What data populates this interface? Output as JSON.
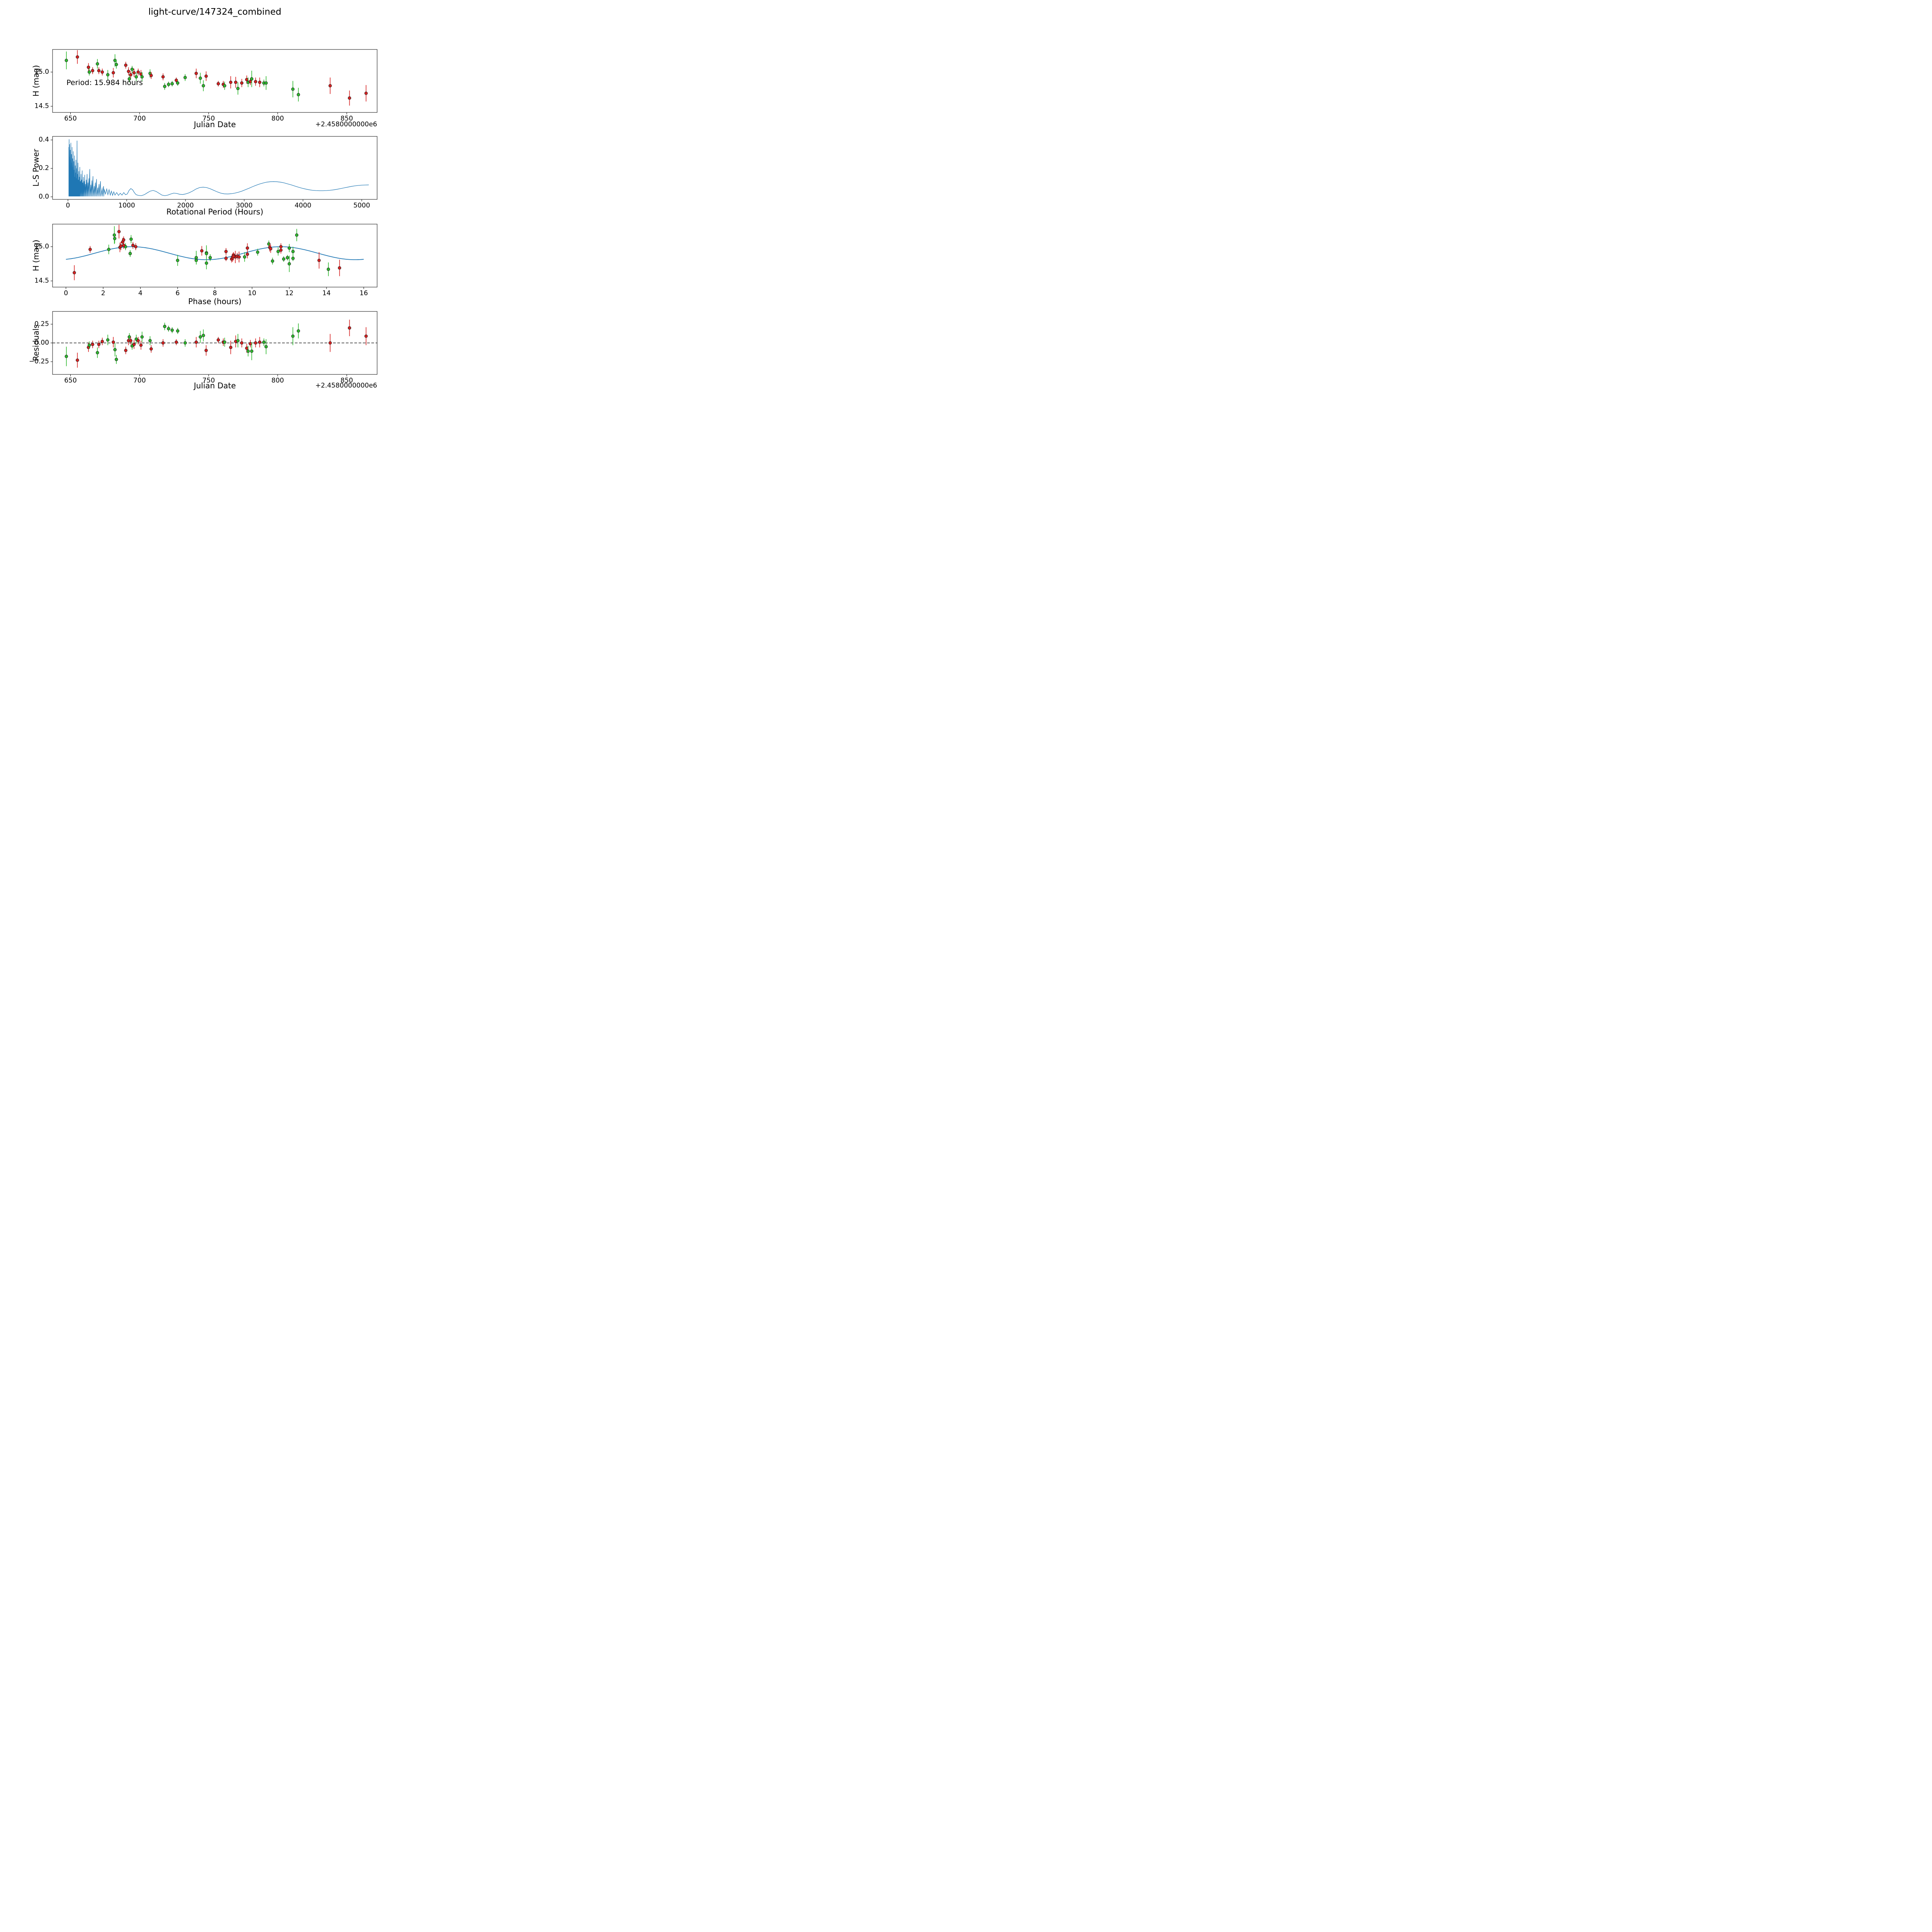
{
  "title": "light-curve/147324_combined",
  "colors": {
    "red": "#d62020",
    "green": "#2db82d",
    "blue": "#1f77b4",
    "marker_edge": "#1a1a1a",
    "axis": "#000000"
  },
  "chart_data": [
    {
      "type": "scatter",
      "name": "light-curve-vs-jd",
      "xlabel": "Julian Date",
      "ylabel": "H (mag)",
      "x_offset_label": "+2.4580000000e6",
      "annotation": "Period: 15.984 hours",
      "xlim": [
        637,
        872
      ],
      "ylim_bottom_top": [
        14.41,
        15.33
      ],
      "xticks": {
        "values": [
          650,
          700,
          750,
          800,
          850
        ],
        "labels": [
          "650",
          "700",
          "750",
          "800",
          "850"
        ]
      },
      "yticks": {
        "values": [
          15.0,
          14.5
        ],
        "labels": [
          "15.0",
          "14.5"
        ]
      },
      "x_field": "jd",
      "y_field": "mag",
      "errorbars": true
    },
    {
      "type": "line",
      "name": "lomb-scargle-periodogram",
      "xlabel": "Rotational Period (Hours)",
      "ylabel": "L-S Power",
      "xlim": [
        -262,
        5262
      ],
      "ylim_bottom_top": [
        -0.018,
        0.425
      ],
      "xticks": {
        "values": [
          0,
          1000,
          2000,
          3000,
          4000,
          5000
        ],
        "labels": [
          "0",
          "1000",
          "2000",
          "3000",
          "4000",
          "5000"
        ]
      },
      "yticks": {
        "values": [
          0.0,
          0.2,
          0.4
        ],
        "labels": [
          "0.0",
          "0.2",
          "0.4"
        ]
      },
      "spikes": [
        [
          15,
          0.35
        ],
        [
          20,
          0.405
        ],
        [
          25,
          0.28
        ],
        [
          30,
          0.37
        ],
        [
          35,
          0.22
        ],
        [
          40,
          0.33
        ],
        [
          45,
          0.26
        ],
        [
          50,
          0.38
        ],
        [
          55,
          0.19
        ],
        [
          60,
          0.3
        ],
        [
          65,
          0.24
        ],
        [
          70,
          0.35
        ],
        [
          75,
          0.17
        ],
        [
          80,
          0.27
        ],
        [
          85,
          0.21
        ],
        [
          90,
          0.32
        ],
        [
          95,
          0.15
        ],
        [
          100,
          0.25
        ],
        [
          106,
          0.19
        ],
        [
          112,
          0.29
        ],
        [
          118,
          0.14
        ],
        [
          124,
          0.22
        ],
        [
          130,
          0.17
        ],
        [
          136,
          0.26
        ],
        [
          142,
          0.13
        ],
        [
          148,
          0.2
        ],
        [
          155,
          0.395
        ],
        [
          162,
          0.16
        ],
        [
          170,
          0.24
        ],
        [
          178,
          0.12
        ],
        [
          186,
          0.18
        ],
        [
          194,
          0.14
        ],
        [
          202,
          0.21
        ],
        [
          212,
          0.11
        ],
        [
          222,
          0.16
        ],
        [
          232,
          0.12
        ],
        [
          242,
          0.185
        ],
        [
          252,
          0.1
        ],
        [
          262,
          0.14
        ],
        [
          274,
          0.11
        ],
        [
          286,
          0.155
        ],
        [
          298,
          0.09
        ],
        [
          312,
          0.12
        ],
        [
          326,
          0.16
        ],
        [
          340,
          0.1
        ],
        [
          356,
          0.13
        ],
        [
          372,
          0.195
        ],
        [
          390,
          0.085
        ],
        [
          408,
          0.115
        ],
        [
          426,
          0.145
        ],
        [
          446,
          0.075
        ],
        [
          466,
          0.1
        ],
        [
          486,
          0.125
        ],
        [
          508,
          0.065
        ],
        [
          530,
          0.09
        ],
        [
          554,
          0.11
        ],
        [
          580,
          0.055
        ],
        [
          606,
          0.075
        ]
      ],
      "smooth": [
        [
          620,
          0.05
        ],
        [
          640,
          0.02
        ],
        [
          660,
          0.055
        ],
        [
          680,
          0.015
        ],
        [
          700,
          0.05
        ],
        [
          720,
          0.012
        ],
        [
          740,
          0.04
        ],
        [
          760,
          0.01
        ],
        [
          780,
          0.035
        ],
        [
          800,
          0.012
        ],
        [
          830,
          0.03
        ],
        [
          860,
          0.01
        ],
        [
          890,
          0.025
        ],
        [
          920,
          0.012
        ],
        [
          950,
          0.03
        ],
        [
          980,
          0.015
        ],
        [
          1010,
          0.02
        ],
        [
          1040,
          0.045
        ],
        [
          1070,
          0.058
        ],
        [
          1100,
          0.05
        ],
        [
          1130,
          0.03
        ],
        [
          1160,
          0.015
        ],
        [
          1200,
          0.01
        ],
        [
          1250,
          0.008
        ],
        [
          1300,
          0.015
        ],
        [
          1350,
          0.028
        ],
        [
          1400,
          0.04
        ],
        [
          1450,
          0.045
        ],
        [
          1500,
          0.038
        ],
        [
          1550,
          0.025
        ],
        [
          1600,
          0.012
        ],
        [
          1650,
          0.008
        ],
        [
          1700,
          0.012
        ],
        [
          1750,
          0.02
        ],
        [
          1800,
          0.026
        ],
        [
          1850,
          0.024
        ],
        [
          1900,
          0.018
        ],
        [
          1950,
          0.016
        ],
        [
          2000,
          0.02
        ],
        [
          2060,
          0.028
        ],
        [
          2120,
          0.04
        ],
        [
          2180,
          0.055
        ],
        [
          2240,
          0.065
        ],
        [
          2300,
          0.068
        ],
        [
          2360,
          0.065
        ],
        [
          2420,
          0.057
        ],
        [
          2480,
          0.046
        ],
        [
          2540,
          0.035
        ],
        [
          2600,
          0.026
        ],
        [
          2660,
          0.021
        ],
        [
          2720,
          0.02
        ],
        [
          2780,
          0.022
        ],
        [
          2840,
          0.026
        ],
        [
          2900,
          0.032
        ],
        [
          2960,
          0.04
        ],
        [
          3020,
          0.05
        ],
        [
          3080,
          0.06
        ],
        [
          3140,
          0.071
        ],
        [
          3200,
          0.081
        ],
        [
          3260,
          0.09
        ],
        [
          3320,
          0.097
        ],
        [
          3380,
          0.103
        ],
        [
          3440,
          0.106
        ],
        [
          3500,
          0.107
        ],
        [
          3560,
          0.106
        ],
        [
          3620,
          0.103
        ],
        [
          3680,
          0.098
        ],
        [
          3740,
          0.091
        ],
        [
          3800,
          0.084
        ],
        [
          3860,
          0.076
        ],
        [
          3920,
          0.068
        ],
        [
          3980,
          0.061
        ],
        [
          4040,
          0.055
        ],
        [
          4100,
          0.05
        ],
        [
          4160,
          0.046
        ],
        [
          4220,
          0.044
        ],
        [
          4280,
          0.043
        ],
        [
          4340,
          0.043
        ],
        [
          4400,
          0.044
        ],
        [
          4460,
          0.046
        ],
        [
          4520,
          0.049
        ],
        [
          4580,
          0.053
        ],
        [
          4640,
          0.058
        ],
        [
          4700,
          0.063
        ],
        [
          4760,
          0.068
        ],
        [
          4820,
          0.073
        ],
        [
          4880,
          0.077
        ],
        [
          4940,
          0.08
        ],
        [
          5000,
          0.082
        ],
        [
          5060,
          0.083
        ],
        [
          5120,
          0.084
        ]
      ]
    },
    {
      "type": "scatter",
      "name": "phased-light-curve",
      "xlabel": "Phase (hours)",
      "ylabel": "H (mag)",
      "xlim": [
        -0.72,
        16.72
      ],
      "ylim_bottom_top": [
        14.41,
        15.33
      ],
      "xticks": {
        "values": [
          0,
          2,
          4,
          6,
          8,
          10,
          12,
          14,
          16
        ],
        "labels": [
          "0",
          "2",
          "4",
          "6",
          "8",
          "10",
          "12",
          "14",
          "16"
        ]
      },
      "yticks": {
        "values": [
          15.0,
          14.5
        ],
        "labels": [
          "15.0",
          "14.5"
        ]
      },
      "x_field": "phase",
      "y_field": "mag",
      "errorbars": true,
      "model": {
        "mean": 14.905,
        "amplitude": 0.095,
        "period_hours": 15.984,
        "phase_of_max": 3.55,
        "harmonic": 2,
        "x_start": 0,
        "x_end": 16
      }
    },
    {
      "type": "scatter",
      "name": "residuals-vs-jd",
      "xlabel": "Julian Date",
      "ylabel": "Residuals",
      "x_offset_label": "+2.4580000000e6",
      "xlim": [
        637,
        872
      ],
      "ylim_bottom_top": [
        -0.42,
        0.42
      ],
      "xticks": {
        "values": [
          650,
          700,
          750,
          800,
          850
        ],
        "labels": [
          "650",
          "700",
          "750",
          "800",
          "850"
        ]
      },
      "yticks": {
        "values": [
          -0.25,
          0.0,
          0.25
        ],
        "labels": [
          "−0.25",
          "0.00",
          "0.25"
        ]
      },
      "x_field": "jd",
      "y_field": "resid",
      "errorbars": true,
      "zero_line": true
    }
  ],
  "observation_fields": [
    "jd",
    "mag",
    "err",
    "band",
    "phase",
    "resid"
  ],
  "observations": [
    [
      647.0,
      15.17,
      0.13,
      "g",
      2.6,
      -0.18
    ],
    [
      655.0,
      15.22,
      0.1,
      "r",
      2.85,
      -0.23
    ],
    [
      663.0,
      15.07,
      0.06,
      "r",
      3.05,
      -0.06
    ],
    [
      663.6,
      15.0,
      0.05,
      "g",
      3.2,
      -0.03
    ],
    [
      666.0,
      15.02,
      0.05,
      "r",
      3.1,
      -0.02
    ],
    [
      669.5,
      15.12,
      0.07,
      "g",
      2.62,
      -0.13
    ],
    [
      670.5,
      15.02,
      0.05,
      "r",
      3.6,
      -0.02
    ],
    [
      673.0,
      15.0,
      0.05,
      "r",
      3.75,
      0.02
    ],
    [
      677.0,
      14.96,
      0.07,
      "g",
      2.3,
      0.04
    ],
    [
      681.0,
      14.99,
      0.07,
      "r",
      2.9,
      0.01
    ],
    [
      682.2,
      15.17,
      0.09,
      "g",
      12.4,
      -0.09
    ],
    [
      683.2,
      15.11,
      0.06,
      "g",
      3.5,
      -0.22
    ],
    [
      690.0,
      15.1,
      0.05,
      "r",
      3.1,
      -0.1
    ],
    [
      692.0,
      15.01,
      0.06,
      "r",
      2.95,
      0.03
    ],
    [
      692.6,
      14.9,
      0.05,
      "g",
      3.45,
      0.08
    ],
    [
      693.6,
      14.96,
      0.05,
      "r",
      1.3,
      0.03
    ],
    [
      694.6,
      15.04,
      0.05,
      "g",
      10.9,
      -0.04
    ],
    [
      696.0,
      14.99,
      0.06,
      "r",
      10.95,
      -0.02
    ],
    [
      697.6,
      14.93,
      0.06,
      "g",
      11.4,
      0.05
    ],
    [
      699.0,
      15.0,
      0.05,
      "r",
      11.55,
      0.03
    ],
    [
      701.0,
      14.97,
      0.06,
      "r",
      11.0,
      -0.03
    ],
    [
      701.8,
      14.93,
      0.07,
      "g",
      12.2,
      0.08
    ],
    [
      707.6,
      14.98,
      0.06,
      "g",
      12.0,
      0.03
    ],
    [
      708.4,
      14.95,
      0.05,
      "r",
      11.55,
      -0.08
    ],
    [
      717.0,
      14.93,
      0.05,
      "r",
      8.6,
      0.0
    ],
    [
      718.2,
      14.79,
      0.05,
      "g",
      11.1,
      0.22
    ],
    [
      721.0,
      14.82,
      0.04,
      "g",
      11.7,
      0.19
    ],
    [
      723.6,
      14.83,
      0.04,
      "g",
      12.2,
      0.17
    ],
    [
      726.6,
      14.88,
      0.04,
      "r",
      9.0,
      0.01
    ],
    [
      727.6,
      14.84,
      0.04,
      "g",
      11.9,
      0.16
    ],
    [
      733.0,
      14.92,
      0.05,
      "g",
      10.3,
      0.0
    ],
    [
      741.0,
      14.98,
      0.07,
      "r",
      9.75,
      0.01
    ],
    [
      744.0,
      14.91,
      0.08,
      "g",
      7.55,
      0.08
    ],
    [
      746.2,
      14.8,
      0.08,
      "g",
      6.0,
      0.1
    ],
    [
      748.2,
      14.94,
      0.07,
      "r",
      7.3,
      -0.1
    ],
    [
      757.0,
      14.83,
      0.04,
      "r",
      8.6,
      0.04
    ],
    [
      760.6,
      14.82,
      0.05,
      "r",
      8.9,
      0.01
    ],
    [
      761.6,
      14.8,
      0.06,
      "g",
      7.0,
      0.01
    ],
    [
      766.0,
      14.85,
      0.09,
      "r",
      9.1,
      -0.06
    ],
    [
      769.6,
      14.85,
      0.08,
      "r",
      9.3,
      0.02
    ],
    [
      771.2,
      14.76,
      0.09,
      "g",
      7.55,
      0.03
    ],
    [
      774.0,
      14.84,
      0.06,
      "r",
      8.95,
      0.0
    ],
    [
      777.6,
      14.89,
      0.06,
      "r",
      9.75,
      -0.07
    ],
    [
      778.6,
      14.85,
      0.07,
      "g",
      9.6,
      -0.11
    ],
    [
      780.2,
      14.86,
      0.05,
      "r",
      9.2,
      -0.01
    ],
    [
      781.2,
      14.9,
      0.12,
      "g",
      7.55,
      -0.11
    ],
    [
      784.0,
      14.86,
      0.06,
      "r",
      9.0,
      0.0
    ],
    [
      787.0,
      14.85,
      0.07,
      "r",
      9.3,
      0.01
    ],
    [
      790.0,
      14.84,
      0.05,
      "g",
      7.75,
      0.01
    ],
    [
      791.6,
      14.84,
      0.1,
      "g",
      7.0,
      -0.05
    ],
    [
      811.0,
      14.75,
      0.12,
      "g",
      12.0,
      0.09
    ],
    [
      815.0,
      14.67,
      0.1,
      "g",
      14.1,
      0.16
    ],
    [
      838.0,
      14.8,
      0.12,
      "r",
      13.6,
      0.0
    ],
    [
      852.0,
      14.62,
      0.11,
      "r",
      0.45,
      0.2
    ],
    [
      864.0,
      14.69,
      0.12,
      "r",
      14.7,
      0.09
    ]
  ]
}
